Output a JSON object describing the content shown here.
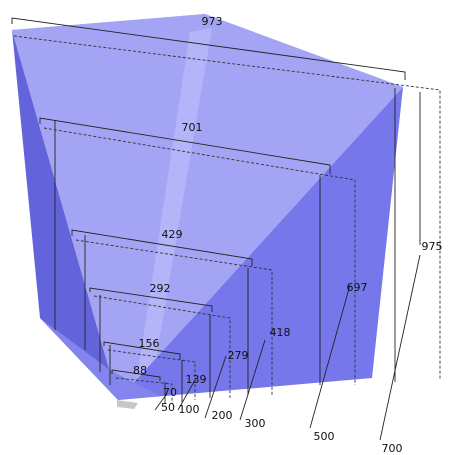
{
  "colors": {
    "face_left": "#6363dc",
    "face_main": "#a4a4f4",
    "face_right": "#7777ec",
    "face_top": "#9c9cf4",
    "face_bottom": "#8484ee",
    "stripe": "#b4b4f8"
  },
  "top_labels": [
    "973",
    "701",
    "429",
    "292",
    "156",
    "88"
  ],
  "side_labels": [
    "975",
    "697",
    "418",
    "279",
    "139",
    "70"
  ],
  "bottom_labels": [
    "50",
    "100",
    "200",
    "300",
    "500",
    "700"
  ]
}
